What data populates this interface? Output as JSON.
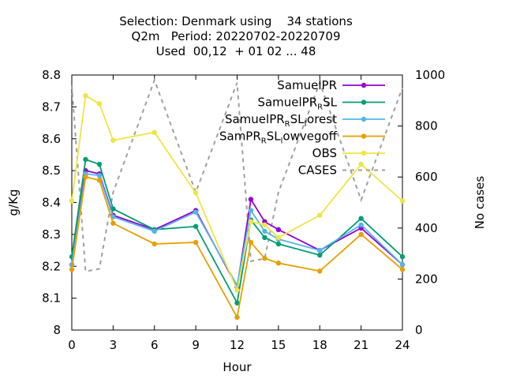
{
  "chart_data": {
    "type": "line",
    "title_lines": [
      "Selection: Denmark using    34 stations",
      "Q2m   Period: 20220702-20220709",
      "Used  00,12  + 01 02 ... 48"
    ],
    "xlabel": "Hour",
    "ylabel": "g/Kg",
    "y2label": "No cases",
    "xlim": [
      0,
      24
    ],
    "ylim": [
      8.0,
      8.8
    ],
    "y2lim": [
      0,
      1000
    ],
    "xticks": [
      "0",
      "3",
      "6",
      "9",
      "12",
      "15",
      "18",
      "21",
      "24"
    ],
    "yticks": [
      "8",
      "8.1",
      "8.2",
      "8.3",
      "8.4",
      "8.5",
      "8.6",
      "8.7",
      "8.8"
    ],
    "y2ticks": [
      "0",
      "200",
      "400",
      "600",
      "800",
      "1000"
    ],
    "legend_position": "top-right",
    "series": [
      {
        "name": "SamuelPR",
        "name_parts": [
          [
            "SamuelPR",
            ""
          ]
        ],
        "color": "#9400d3",
        "marker": "circle",
        "x": [
          0,
          1,
          2,
          3,
          6,
          9,
          12,
          13,
          14,
          15,
          18,
          21,
          24
        ],
        "values": [
          8.205,
          8.5,
          8.49,
          8.36,
          8.315,
          8.375,
          8.135,
          8.41,
          8.34,
          8.315,
          8.25,
          8.32,
          8.205
        ]
      },
      {
        "name": "SamuelPR_RSL",
        "name_parts": [
          [
            "SamuelPR",
            ""
          ],
          [
            "R",
            "sub"
          ],
          [
            "SL",
            ""
          ]
        ],
        "color": "#009e73",
        "marker": "circle",
        "x": [
          0,
          1,
          2,
          3,
          6,
          9,
          12,
          13,
          14,
          15,
          18,
          21,
          24
        ],
        "values": [
          8.23,
          8.535,
          8.52,
          8.38,
          8.315,
          8.325,
          8.085,
          8.345,
          8.29,
          8.27,
          8.235,
          8.35,
          8.23
        ]
      },
      {
        "name": "SamuelPR_RSL_forest",
        "name_parts": [
          [
            "SamuelPR",
            ""
          ],
          [
            "R",
            "sub"
          ],
          [
            "SL",
            ""
          ],
          [
            "f",
            "sub"
          ],
          [
            "orest",
            ""
          ]
        ],
        "color": "#56b4e9",
        "marker": "circle",
        "x": [
          0,
          1,
          2,
          3,
          6,
          9,
          12,
          13,
          14,
          15,
          18,
          21,
          24
        ],
        "values": [
          8.205,
          8.49,
          8.485,
          8.355,
          8.31,
          8.37,
          8.14,
          8.375,
          8.31,
          8.285,
          8.25,
          8.33,
          8.205
        ]
      },
      {
        "name": "SamPR_RSL_lowvegoff",
        "name_parts": [
          [
            "SamPR",
            ""
          ],
          [
            "R",
            "sub"
          ],
          [
            "SL",
            ""
          ],
          [
            "l",
            "sub"
          ],
          [
            "owvegoff",
            ""
          ]
        ],
        "color": "#e69f00",
        "marker": "circle",
        "x": [
          0,
          1,
          2,
          3,
          6,
          9,
          12,
          13,
          14,
          15,
          18,
          21,
          24
        ],
        "values": [
          8.19,
          8.48,
          8.47,
          8.335,
          8.27,
          8.275,
          8.04,
          8.275,
          8.225,
          8.21,
          8.185,
          8.3,
          8.19
        ]
      },
      {
        "name": "OBS",
        "name_parts": [
          [
            "OBS",
            ""
          ]
        ],
        "color": "#f0e442",
        "marker": "circle",
        "x": [
          0,
          1,
          2,
          3,
          6,
          9,
          12,
          13,
          14,
          15,
          18,
          21,
          24
        ],
        "values": [
          8.405,
          8.735,
          8.71,
          8.595,
          8.62,
          8.43,
          8.125,
          8.34,
          8.33,
          8.29,
          8.36,
          8.52,
          8.405
        ]
      },
      {
        "name": "CASES",
        "name_parts": [
          [
            "CASES",
            ""
          ]
        ],
        "color": "#a0a0a0",
        "dashed": true,
        "axis": "y2",
        "x": [
          0,
          1,
          2,
          3,
          6,
          9,
          12,
          13,
          14,
          15,
          18,
          21,
          24
        ],
        "values": [
          960,
          230,
          240,
          540,
          980,
          540,
          970,
          270,
          280,
          540,
          970,
          510,
          950
        ]
      }
    ]
  }
}
